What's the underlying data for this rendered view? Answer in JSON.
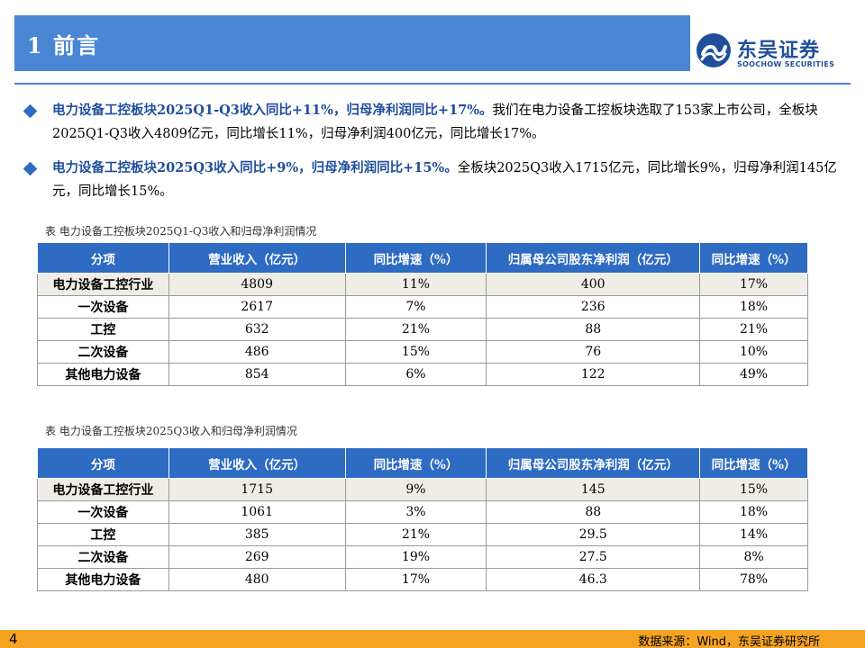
{
  "header": {
    "title": "1 前言"
  },
  "logo": {
    "cn": "东吴证券",
    "en": "SOOCHOW SECURITIES",
    "brand_color": "#1f4e9a"
  },
  "bullets": [
    {
      "highlight": "电力设备工控板块2025Q1-Q3收入同比+11%，归母净利润同比+17%。",
      "text": "我们在电力设备工控板块选取了153家上市公司，全板块2025Q1-Q3收入4809亿元，同比增长11%，归母净利润400亿元，同比增长17%。"
    },
    {
      "highlight": "电力设备工控板块2025Q3收入同比+9%，归母净利润同比+15%。",
      "text": "全板块2025Q3收入1715亿元，同比增长9%，归母净利润145亿元，同比增长15%。"
    }
  ],
  "tables": [
    {
      "caption": "表 电力设备工控板块2025Q1-Q3收入和归母净利润情况",
      "headers": [
        "分项",
        "营业收入（亿元）",
        "同比增速（%）",
        "归属母公司股东净利润（亿元）",
        "同比增速（%）"
      ],
      "rows": [
        [
          "电力设备工控行业",
          "4809",
          "11%",
          "400",
          "17%"
        ],
        [
          "一次设备",
          "2617",
          "7%",
          "236",
          "18%"
        ],
        [
          "工控",
          "632",
          "21%",
          "88",
          "21%"
        ],
        [
          "二次设备",
          "486",
          "15%",
          "76",
          "10%"
        ],
        [
          "其他电力设备",
          "854",
          "6%",
          "122",
          "49%"
        ]
      ]
    },
    {
      "caption": "表 电力设备工控板块2025Q3收入和归母净利润情况",
      "headers": [
        "分项",
        "营业收入（亿元）",
        "同比增速（%）",
        "归属母公司股东净利润（亿元）",
        "同比增速（%）"
      ],
      "rows": [
        [
          "电力设备工控行业",
          "1715",
          "9%",
          "145",
          "15%"
        ],
        [
          "一次设备",
          "1061",
          "3%",
          "88",
          "18%"
        ],
        [
          "工控",
          "385",
          "21%",
          "29.5",
          "14%"
        ],
        [
          "二次设备",
          "269",
          "19%",
          "27.5",
          "8%"
        ],
        [
          "其他电力设备",
          "480",
          "17%",
          "46.3",
          "78%"
        ]
      ]
    }
  ],
  "footer": {
    "page": "4",
    "source": "数据来源：Wind，东吴证券研究所"
  },
  "colors": {
    "header": "#4a86d4",
    "table_header": "#2e6bc2",
    "footer": "#f4a322"
  }
}
